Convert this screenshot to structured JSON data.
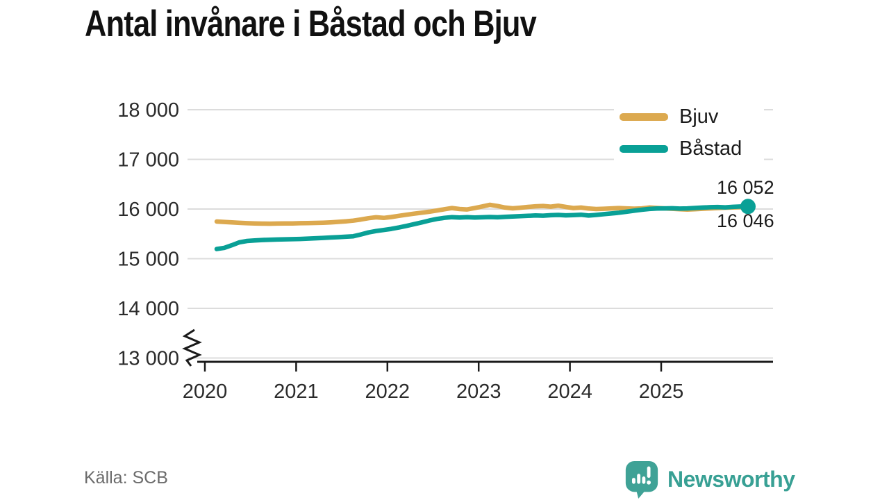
{
  "title": "Antal invånare i Båstad och Bjuv",
  "source": {
    "label": "Källa: SCB"
  },
  "branding": {
    "name": "Newsworthy",
    "color": "#38a094",
    "icon": "newsworthy-bubble-chart-icon"
  },
  "annotations": [
    {
      "series": "Båstad",
      "text": "16 052"
    },
    {
      "series": "Bjuv",
      "text": "16 046"
    }
  ],
  "chart_data": {
    "type": "line",
    "title": "Antal invånare i Båstad och Bjuv",
    "x_unit": "month",
    "x_start": "2020-01",
    "x_end": "2025-11",
    "x_ticks": [
      "2020",
      "2021",
      "2022",
      "2023",
      "2024",
      "2025"
    ],
    "y_ticks": [
      18000,
      17000,
      16000,
      15000,
      14000,
      13000
    ],
    "ylim": [
      13000,
      18000
    ],
    "y_axis_break": true,
    "grid": "horizontal",
    "legend_position": "top-right",
    "colors": {
      "grid": "#dcdcdc",
      "axis": "#1a1a1a",
      "tick_text": "#2b2b2b"
    },
    "series": [
      {
        "name": "Bjuv",
        "color": "#DCA94F",
        "end_value": 16046,
        "end_dot": false,
        "values": [
          15748,
          15740,
          15730,
          15722,
          15715,
          15710,
          15706,
          15705,
          15707,
          15709,
          15711,
          15714,
          15717,
          15720,
          15724,
          15731,
          15741,
          15753,
          15767,
          15789,
          15816,
          15833,
          15821,
          15839,
          15863,
          15886,
          15906,
          15926,
          15946,
          15969,
          15996,
          16020,
          16000,
          15992,
          16020,
          16052,
          16085,
          16060,
          16030,
          16014,
          16026,
          16042,
          16054,
          16062,
          16047,
          16067,
          16042,
          16020,
          16030,
          16010,
          16000,
          16006,
          16013,
          16019,
          16013,
          16007,
          16013,
          16031,
          16021,
          16013,
          16006,
          15996,
          15989,
          15996,
          16006,
          16013,
          16019,
          16026,
          16031,
          16039,
          16046
        ]
      },
      {
        "name": "Båstad",
        "color": "#09A096",
        "end_value": 16052,
        "end_dot": true,
        "values": [
          15195,
          15218,
          15272,
          15330,
          15356,
          15368,
          15376,
          15382,
          15386,
          15390,
          15393,
          15397,
          15404,
          15411,
          15418,
          15426,
          15434,
          15442,
          15452,
          15488,
          15528,
          15556,
          15578,
          15600,
          15628,
          15660,
          15695,
          15730,
          15768,
          15800,
          15822,
          15836,
          15828,
          15836,
          15830,
          15833,
          15839,
          15833,
          15843,
          15851,
          15857,
          15863,
          15871,
          15866,
          15876,
          15881,
          15873,
          15879,
          15886,
          15869,
          15881,
          15896,
          15911,
          15926,
          15946,
          15966,
          15986,
          16001,
          16011,
          16013,
          16016,
          16009,
          16013,
          16021,
          16029,
          16036,
          16041,
          16033,
          16043,
          16050,
          16052
        ]
      }
    ]
  }
}
